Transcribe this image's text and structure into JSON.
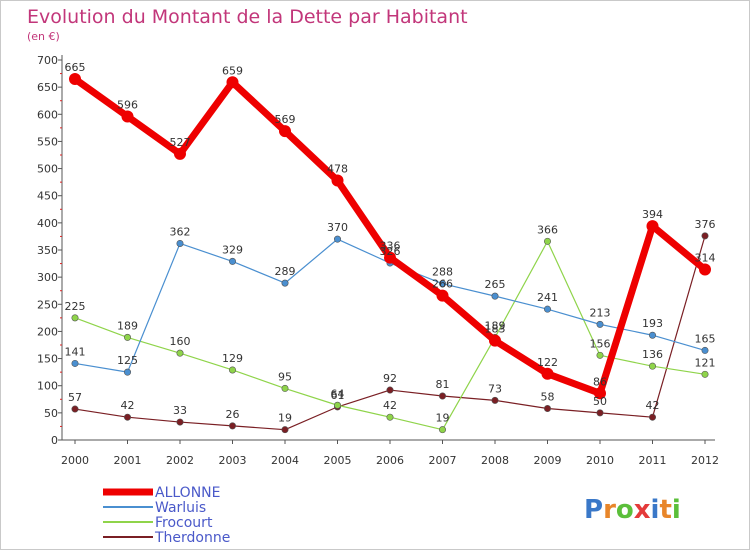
{
  "chart_data": {
    "type": "line",
    "title": "Evolution du Montant de la Dette par Habitant",
    "subtitle": "(en €)",
    "x": [
      "2000",
      "2001",
      "2002",
      "2003",
      "2004",
      "2005",
      "2006",
      "2007",
      "2008",
      "2009",
      "2010",
      "2011",
      "2012"
    ],
    "ylim": [
      0,
      700
    ],
    "yticks": [
      0,
      50,
      100,
      150,
      200,
      250,
      300,
      350,
      400,
      450,
      500,
      550,
      600,
      650,
      700
    ],
    "grid": false,
    "legend_position": "bottom-left",
    "series": [
      {
        "name": "ALLONNE",
        "color": "#ee0000",
        "values": [
          665,
          596,
          527,
          659,
          569,
          478,
          336,
          266,
          183,
          122,
          86,
          394,
          314
        ]
      },
      {
        "name": "Warluis",
        "color": "#4a8fd0",
        "values": [
          141,
          125,
          362,
          329,
          289,
          370,
          326,
          288,
          265,
          241,
          213,
          193,
          165
        ]
      },
      {
        "name": "Frocourt",
        "color": "#8fd44a",
        "values": [
          225,
          189,
          160,
          129,
          95,
          64,
          42,
          19,
          189,
          366,
          156,
          136,
          121
        ]
      },
      {
        "name": "Therdonne",
        "color": "#7a1f24",
        "values": [
          57,
          42,
          33,
          26,
          19,
          61,
          92,
          81,
          73,
          58,
          50,
          42,
          376
        ]
      }
    ]
  },
  "brand": {
    "logo_text": "Proxiti",
    "colors": [
      "#3a78c8",
      "#e8862a",
      "#5bbf3a",
      "#e43a3a"
    ]
  }
}
